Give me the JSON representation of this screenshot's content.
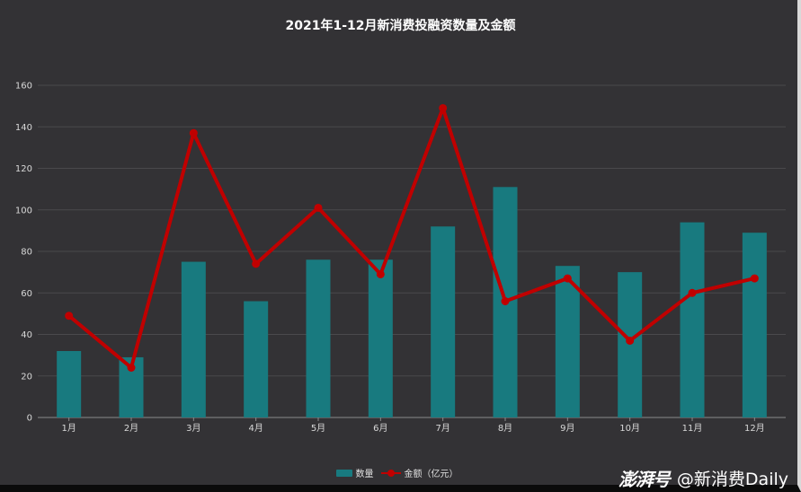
{
  "chart_data": {
    "type": "bar",
    "title": "2021年1-12月新消费投融资数量及金额",
    "categories": [
      "1月",
      "2月",
      "3月",
      "4月",
      "5月",
      "6月",
      "7月",
      "8月",
      "9月",
      "10月",
      "11月",
      "12月"
    ],
    "series": [
      {
        "name": "数量",
        "type": "bar",
        "color": "#187a7f",
        "values": [
          32,
          29,
          75,
          56,
          76,
          76,
          92,
          111,
          73,
          70,
          94,
          89
        ]
      },
      {
        "name": "金额（亿元）",
        "type": "line",
        "color": "#c00000",
        "values": [
          49,
          24,
          137,
          74,
          101,
          69,
          149,
          56,
          67,
          37,
          60,
          67
        ]
      }
    ],
    "ylim": [
      0,
      160
    ],
    "yticks": [
      0,
      20,
      40,
      60,
      80,
      100,
      120,
      140,
      160
    ],
    "grid": true,
    "legend_position": "bottom-center",
    "xlabel": "",
    "ylabel": ""
  },
  "watermark": {
    "logo": "澎湃号",
    "handle": "@新消费Daily"
  }
}
